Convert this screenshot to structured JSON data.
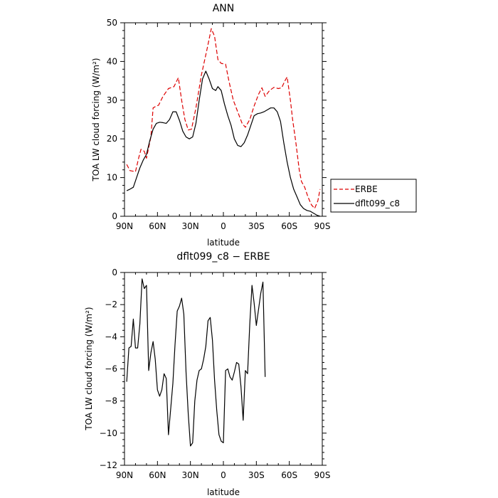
{
  "chart_data": [
    {
      "type": "line",
      "title": "ANN",
      "xlabel": "latitude",
      "ylabel": "TOA LW cloud forcing (W/m²)",
      "xlim": [
        -90,
        90
      ],
      "ylim": [
        0,
        50
      ],
      "x_ticks": [
        {
          "value": -90,
          "label": "90N"
        },
        {
          "value": -60,
          "label": "60N"
        },
        {
          "value": -30,
          "label": "30N"
        },
        {
          "value": 0,
          "label": "0"
        },
        {
          "value": 30,
          "label": "30S"
        },
        {
          "value": 60,
          "label": "60S"
        },
        {
          "value": 90,
          "label": "90S"
        }
      ],
      "y_ticks": [
        {
          "value": 0,
          "label": "0"
        },
        {
          "value": 10,
          "label": "10"
        },
        {
          "value": 20,
          "label": "20"
        },
        {
          "value": 30,
          "label": "30"
        },
        {
          "value": 40,
          "label": "40"
        },
        {
          "value": 50,
          "label": "50"
        }
      ],
      "legend_position": "right",
      "series": [
        {
          "name": "ERBE",
          "color": "#dd0000",
          "dash": "dashed",
          "points": [
            [
              -88,
              13.4
            ],
            [
              -85,
              11.8
            ],
            [
              -80,
              11.5
            ],
            [
              -77,
              15.2
            ],
            [
              -75,
              17.3
            ],
            [
              -72,
              16.8
            ],
            [
              -70,
              15.0
            ],
            [
              -66,
              20.5
            ],
            [
              -64,
              28.0
            ],
            [
              -61,
              28.5
            ],
            [
              -59,
              28.7
            ],
            [
              -55,
              31.0
            ],
            [
              -50,
              33.0
            ],
            [
              -45,
              33.5
            ],
            [
              -41,
              35.8
            ],
            [
              -38,
              30.0
            ],
            [
              -35,
              25.0
            ],
            [
              -32,
              22.3
            ],
            [
              -29,
              22.5
            ],
            [
              -25,
              28.0
            ],
            [
              -20,
              36.5
            ],
            [
              -15,
              43.0
            ],
            [
              -11,
              48.5
            ],
            [
              -8,
              46.5
            ],
            [
              -5,
              40.5
            ],
            [
              -2,
              39.5
            ],
            [
              2,
              39.3
            ],
            [
              5,
              35.0
            ],
            [
              9,
              30.0
            ],
            [
              13,
              27.0
            ],
            [
              17,
              24.0
            ],
            [
              20,
              23.0
            ],
            [
              24,
              25.0
            ],
            [
              28,
              28.5
            ],
            [
              32,
              31.5
            ],
            [
              35,
              33.2
            ],
            [
              38,
              31.0
            ],
            [
              42,
              32.5
            ],
            [
              46,
              33.3
            ],
            [
              50,
              33.0
            ],
            [
              53,
              33.2
            ],
            [
              56,
              35.0
            ],
            [
              58,
              36.0
            ],
            [
              61,
              30.0
            ],
            [
              63,
              25.0
            ],
            [
              66,
              19.0
            ],
            [
              69,
              12.0
            ],
            [
              71,
              9.0
            ],
            [
              74,
              7.5
            ],
            [
              77,
              5.0
            ],
            [
              80,
              3.0
            ],
            [
              83,
              2.0
            ],
            [
              86,
              4.0
            ],
            [
              88,
              7.0
            ]
          ]
        },
        {
          "name": "dflt099_c8",
          "color": "#000000",
          "dash": "solid",
          "points": [
            [
              -88,
              6.6
            ],
            [
              -85,
              7.0
            ],
            [
              -82,
              7.5
            ],
            [
              -79,
              10.0
            ],
            [
              -76,
              12.5
            ],
            [
              -73,
              14.5
            ],
            [
              -70,
              16.0
            ],
            [
              -67,
              19.5
            ],
            [
              -64,
              22.5
            ],
            [
              -61,
              24.0
            ],
            [
              -58,
              24.3
            ],
            [
              -55,
              24.2
            ],
            [
              -52,
              24.0
            ],
            [
              -49,
              25.0
            ],
            [
              -46,
              27.0
            ],
            [
              -43,
              27.0
            ],
            [
              -40,
              24.8
            ],
            [
              -37,
              22.0
            ],
            [
              -34,
              20.5
            ],
            [
              -31,
              20.0
            ],
            [
              -28,
              20.5
            ],
            [
              -25,
              24.0
            ],
            [
              -22,
              30.0
            ],
            [
              -19,
              35.5
            ],
            [
              -16,
              37.5
            ],
            [
              -13,
              35.5
            ],
            [
              -10,
              33.0
            ],
            [
              -7,
              32.5
            ],
            [
              -5,
              33.5
            ],
            [
              -2,
              32.5
            ],
            [
              1,
              29.0
            ],
            [
              4,
              26.0
            ],
            [
              7,
              23.5
            ],
            [
              10,
              20.0
            ],
            [
              13,
              18.3
            ],
            [
              16,
              18.0
            ],
            [
              19,
              19.0
            ],
            [
              22,
              21.0
            ],
            [
              25,
              23.5
            ],
            [
              28,
              26.0
            ],
            [
              31,
              26.5
            ],
            [
              34,
              26.7
            ],
            [
              37,
              27.0
            ],
            [
              40,
              27.5
            ],
            [
              43,
              28.0
            ],
            [
              46,
              28.0
            ],
            [
              49,
              27.0
            ],
            [
              52,
              24.5
            ],
            [
              55,
              19.0
            ],
            [
              58,
              14.0
            ],
            [
              61,
              10.0
            ],
            [
              64,
              7.0
            ],
            [
              67,
              5.0
            ],
            [
              70,
              3.0
            ],
            [
              73,
              2.0
            ],
            [
              76,
              1.5
            ],
            [
              79,
              1.3
            ],
            [
              82,
              0.8
            ],
            [
              85,
              0.3
            ],
            [
              88,
              0.0
            ]
          ]
        }
      ]
    },
    {
      "type": "line",
      "title": "dflt099_c8 − ERBE",
      "xlabel": "latitude",
      "ylabel": "TOA LW cloud forcing (W/m²)",
      "xlim": [
        -90,
        90
      ],
      "ylim": [
        -12,
        0
      ],
      "x_ticks": [
        {
          "value": -90,
          "label": "90N"
        },
        {
          "value": -60,
          "label": "60N"
        },
        {
          "value": -30,
          "label": "30N"
        },
        {
          "value": 0,
          "label": "0"
        },
        {
          "value": 30,
          "label": "30S"
        },
        {
          "value": 60,
          "label": "60S"
        },
        {
          "value": 90,
          "label": "90S"
        }
      ],
      "y_ticks": [
        {
          "value": 0,
          "label": "0"
        },
        {
          "value": -2,
          "label": "−2"
        },
        {
          "value": -4,
          "label": "−4"
        },
        {
          "value": -6,
          "label": "−6"
        },
        {
          "value": -8,
          "label": "−8"
        },
        {
          "value": -10,
          "label": "−10"
        },
        {
          "value": -12,
          "label": "−12"
        }
      ],
      "series": [
        {
          "color": "#000000",
          "dash": "solid",
          "points": [
            [
              -88,
              -6.8
            ],
            [
              -86,
              -4.7
            ],
            [
              -84,
              -4.6
            ],
            [
              -82,
              -2.9
            ],
            [
              -80,
              -4.7
            ],
            [
              -78,
              -4.7
            ],
            [
              -76,
              -3.2
            ],
            [
              -74,
              -0.4
            ],
            [
              -72,
              -1.0
            ],
            [
              -70,
              -0.8
            ],
            [
              -68,
              -6.1
            ],
            [
              -66,
              -5.0
            ],
            [
              -64,
              -4.3
            ],
            [
              -62,
              -5.4
            ],
            [
              -60,
              -7.3
            ],
            [
              -58,
              -7.7
            ],
            [
              -56,
              -7.3
            ],
            [
              -54,
              -6.3
            ],
            [
              -52,
              -6.6
            ],
            [
              -50,
              -10.1
            ],
            [
              -48,
              -8.5
            ],
            [
              -46,
              -6.9
            ],
            [
              -44,
              -4.5
            ],
            [
              -42,
              -2.4
            ],
            [
              -40,
              -2.1
            ],
            [
              -38,
              -1.6
            ],
            [
              -36,
              -2.6
            ],
            [
              -34,
              -6.2
            ],
            [
              -32,
              -8.8
            ],
            [
              -30,
              -10.8
            ],
            [
              -28,
              -10.6
            ],
            [
              -26,
              -8.0
            ],
            [
              -24,
              -6.7
            ],
            [
              -22,
              -6.1
            ],
            [
              -20,
              -6.0
            ],
            [
              -18,
              -5.4
            ],
            [
              -16,
              -4.6
            ],
            [
              -14,
              -3.0
            ],
            [
              -12,
              -2.8
            ],
            [
              -10,
              -4.2
            ],
            [
              -8,
              -6.7
            ],
            [
              -6,
              -8.6
            ],
            [
              -4,
              -10.1
            ],
            [
              -2,
              -10.5
            ],
            [
              0,
              -10.6
            ],
            [
              2,
              -6.1
            ],
            [
              4,
              -6.0
            ],
            [
              6,
              -6.5
            ],
            [
              8,
              -6.7
            ],
            [
              10,
              -6.2
            ],
            [
              12,
              -5.6
            ],
            [
              14,
              -5.7
            ],
            [
              16,
              -7.1
            ],
            [
              18,
              -9.2
            ],
            [
              20,
              -6.1
            ],
            [
              22,
              -6.3
            ],
            [
              24,
              -3.2
            ],
            [
              26,
              -0.8
            ],
            [
              28,
              -1.9
            ],
            [
              30,
              -3.3
            ],
            [
              32,
              -2.3
            ],
            [
              34,
              -1.3
            ],
            [
              36,
              -0.6
            ],
            [
              38,
              -6.5
            ]
          ]
        }
      ]
    }
  ]
}
